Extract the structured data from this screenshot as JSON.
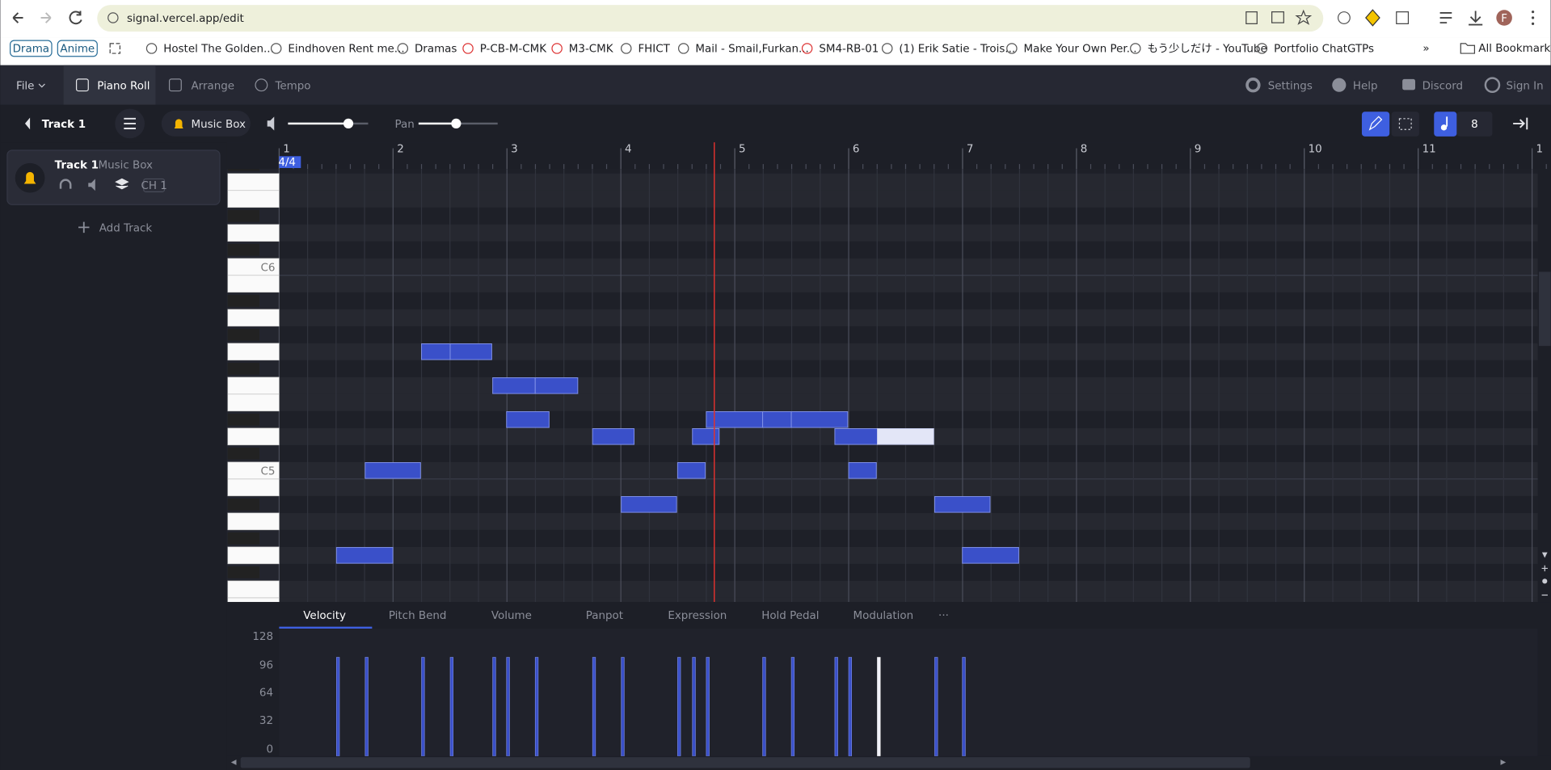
{
  "browser": {
    "url": "signal.vercel.app/edit",
    "bookmarks": [
      "Drama",
      "Anime",
      "Hostel The Golden...",
      "Eindhoven Rent me...",
      "Dramas",
      "P-CB-M-CMK",
      "M3-CMK",
      "FHICT",
      "Mail - Smail,Furkan...",
      "SM4-RB-01",
      "(1) Erik Satie - Trois...",
      "Make Your Own Per...",
      "もう少しだけ - YouTube",
      "Portfolio ChatGTPs"
    ],
    "all_bookmarks": "All Bookmarks",
    "profile": "F"
  },
  "menu": {
    "file": "File",
    "tabs": [
      "Piano Roll",
      "Arrange",
      "Tempo"
    ],
    "right": [
      "Settings",
      "Help",
      "Discord",
      "Sign In"
    ]
  },
  "toolbar": {
    "track": "Track 1",
    "instrument": "Music Box",
    "pan": "Pan",
    "quantize": "8"
  },
  "tracks": [
    {
      "name": "Track 1",
      "instrument": "Music Box",
      "channel": "CH 1"
    }
  ],
  "add_track": "Add Track",
  "ruler": {
    "time_signature": "4/4",
    "measures": [
      "1",
      "2",
      "3",
      "4",
      "5",
      "6",
      "7",
      "8",
      "9",
      "10",
      "11",
      "1"
    ]
  },
  "piano": {
    "labels": [
      "C6",
      "C5"
    ]
  },
  "controller_tabs": [
    "Velocity",
    "Pitch Bend",
    "Volume",
    "Panpot",
    "Expression",
    "Hold Pedal",
    "Modulation",
    "···"
  ],
  "velocity_axis": [
    "128",
    "96",
    "64",
    "32",
    "0"
  ]
}
